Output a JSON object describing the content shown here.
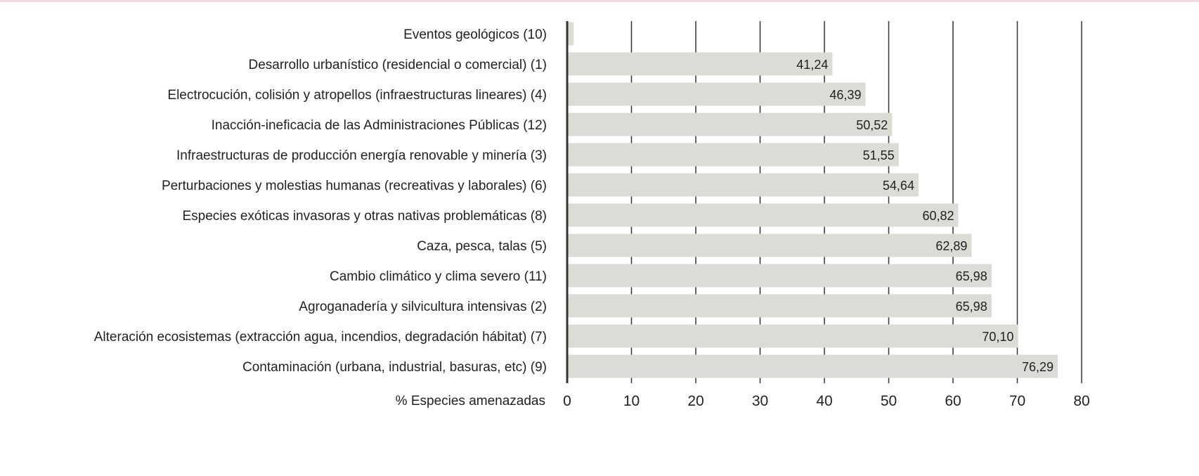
{
  "chart_data": {
    "type": "bar",
    "orientation": "horizontal",
    "categories": [
      "Eventos geológicos (10)",
      "Desarrollo urbanístico (residencial o comercial) (1)",
      "Electrocución, colisión y atropellos (infraestructuras lineares) (4)",
      "Inacción-ineficacia de las Administraciones Públicas (12)",
      "Infraestructuras de producción energía renovable y minería (3)",
      "Perturbaciones y molestias humanas (recreativas y laborales) (6)",
      "Especies exóticas invasoras y otras nativas problemáticas (8)",
      "Caza, pesca, talas (5)",
      "Cambio climático y clima severo (11)",
      "Agroganadería y silvicultura intensivas (2)",
      "Alteración ecosistemas (extracción agua, incendios, degradación hábitat) (7)",
      "Contaminación (urbana, industrial, basuras, etc) (9)"
    ],
    "values": [
      1.0,
      41.24,
      46.39,
      50.52,
      51.55,
      54.64,
      60.82,
      62.89,
      65.98,
      65.98,
      70.1,
      76.29
    ],
    "value_labels": [
      "",
      "41,24",
      "46,39",
      "50,52",
      "51,55",
      "54,64",
      "60,82",
      "62,89",
      "65,98",
      "65,98",
      "70,10",
      "76,29"
    ],
    "xlabel": "% Especies amenazadas",
    "xlim": [
      0,
      80
    ],
    "xticks": [
      "0",
      "10",
      "20",
      "30",
      "40",
      "50",
      "60",
      "70",
      "80"
    ],
    "grid": true,
    "bar_color": "#dcdbd6",
    "grid_color": "#333333"
  }
}
